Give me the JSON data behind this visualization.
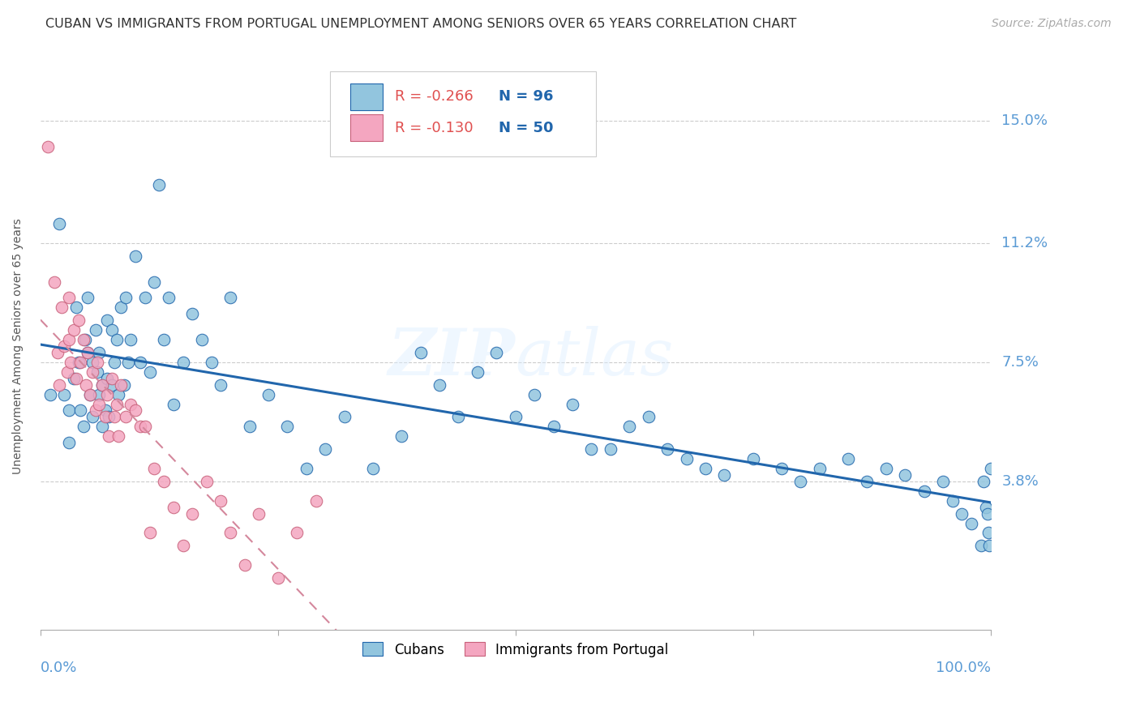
{
  "title": "CUBAN VS IMMIGRANTS FROM PORTUGAL UNEMPLOYMENT AMONG SENIORS OVER 65 YEARS CORRELATION CHART",
  "source": "Source: ZipAtlas.com",
  "ylabel": "Unemployment Among Seniors over 65 years",
  "ytick_labels": [
    "15.0%",
    "11.2%",
    "7.5%",
    "3.8%"
  ],
  "ytick_values": [
    0.15,
    0.112,
    0.075,
    0.038
  ],
  "xmin": 0.0,
  "xmax": 1.0,
  "ymin": -0.008,
  "ymax": 0.168,
  "blue_color": "#92c5de",
  "pink_color": "#f4a6c0",
  "blue_line_color": "#2166ac",
  "pink_line_color": "#d4879c",
  "legend_blue_r": "R = -0.266",
  "legend_blue_n": "N = 96",
  "legend_pink_r": "R = -0.130",
  "legend_pink_n": "N = 50",
  "watermark": "ZIPatlas",
  "cubans_x": [
    0.01,
    0.02,
    0.025,
    0.03,
    0.03,
    0.035,
    0.038,
    0.04,
    0.042,
    0.045,
    0.047,
    0.05,
    0.05,
    0.052,
    0.055,
    0.055,
    0.058,
    0.06,
    0.062,
    0.062,
    0.065,
    0.065,
    0.068,
    0.07,
    0.07,
    0.072,
    0.075,
    0.075,
    0.078,
    0.08,
    0.082,
    0.085,
    0.088,
    0.09,
    0.092,
    0.095,
    0.1,
    0.105,
    0.11,
    0.115,
    0.12,
    0.125,
    0.13,
    0.135,
    0.14,
    0.15,
    0.16,
    0.17,
    0.18,
    0.19,
    0.2,
    0.22,
    0.24,
    0.26,
    0.28,
    0.3,
    0.32,
    0.35,
    0.38,
    0.4,
    0.42,
    0.44,
    0.46,
    0.48,
    0.5,
    0.52,
    0.54,
    0.56,
    0.58,
    0.6,
    0.62,
    0.64,
    0.66,
    0.68,
    0.7,
    0.72,
    0.75,
    0.78,
    0.8,
    0.82,
    0.85,
    0.87,
    0.89,
    0.91,
    0.93,
    0.95,
    0.96,
    0.97,
    0.98,
    0.99,
    0.993,
    0.995,
    0.997,
    0.998,
    0.999,
    1.0
  ],
  "cubans_y": [
    0.065,
    0.118,
    0.065,
    0.06,
    0.05,
    0.07,
    0.092,
    0.075,
    0.06,
    0.055,
    0.082,
    0.095,
    0.078,
    0.065,
    0.075,
    0.058,
    0.085,
    0.072,
    0.078,
    0.065,
    0.068,
    0.055,
    0.06,
    0.088,
    0.07,
    0.058,
    0.085,
    0.068,
    0.075,
    0.082,
    0.065,
    0.092,
    0.068,
    0.095,
    0.075,
    0.082,
    0.108,
    0.075,
    0.095,
    0.072,
    0.1,
    0.13,
    0.082,
    0.095,
    0.062,
    0.075,
    0.09,
    0.082,
    0.075,
    0.068,
    0.095,
    0.055,
    0.065,
    0.055,
    0.042,
    0.048,
    0.058,
    0.042,
    0.052,
    0.078,
    0.068,
    0.058,
    0.072,
    0.078,
    0.058,
    0.065,
    0.055,
    0.062,
    0.048,
    0.048,
    0.055,
    0.058,
    0.048,
    0.045,
    0.042,
    0.04,
    0.045,
    0.042,
    0.038,
    0.042,
    0.045,
    0.038,
    0.042,
    0.04,
    0.035,
    0.038,
    0.032,
    0.028,
    0.025,
    0.018,
    0.038,
    0.03,
    0.028,
    0.022,
    0.018,
    0.042
  ],
  "portugal_x": [
    0.008,
    0.015,
    0.018,
    0.02,
    0.022,
    0.025,
    0.028,
    0.03,
    0.03,
    0.032,
    0.035,
    0.038,
    0.04,
    0.042,
    0.045,
    0.048,
    0.05,
    0.052,
    0.055,
    0.058,
    0.06,
    0.062,
    0.065,
    0.068,
    0.07,
    0.072,
    0.075,
    0.078,
    0.08,
    0.082,
    0.085,
    0.09,
    0.095,
    0.1,
    0.105,
    0.11,
    0.115,
    0.12,
    0.13,
    0.14,
    0.15,
    0.16,
    0.175,
    0.19,
    0.2,
    0.215,
    0.23,
    0.25,
    0.27,
    0.29
  ],
  "portugal_y": [
    0.142,
    0.1,
    0.078,
    0.068,
    0.092,
    0.08,
    0.072,
    0.095,
    0.082,
    0.075,
    0.085,
    0.07,
    0.088,
    0.075,
    0.082,
    0.068,
    0.078,
    0.065,
    0.072,
    0.06,
    0.075,
    0.062,
    0.068,
    0.058,
    0.065,
    0.052,
    0.07,
    0.058,
    0.062,
    0.052,
    0.068,
    0.058,
    0.062,
    0.06,
    0.055,
    0.055,
    0.022,
    0.042,
    0.038,
    0.03,
    0.018,
    0.028,
    0.038,
    0.032,
    0.022,
    0.012,
    0.028,
    0.008,
    0.022,
    0.032
  ],
  "title_fontsize": 11.5,
  "axis_label_fontsize": 10,
  "tick_fontsize": 13,
  "legend_fontsize": 13,
  "source_fontsize": 10
}
